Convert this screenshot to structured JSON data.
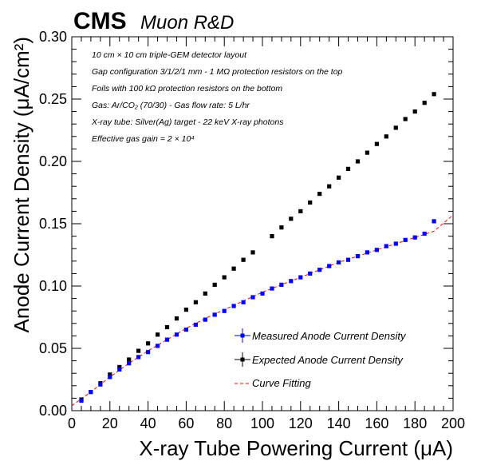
{
  "header": {
    "experiment": "CMS",
    "subtitle": "Muon R&D"
  },
  "annotations": [
    "10 cm × 10 cm triple-GEM detector layout",
    "Gap configuration 3/1/2/1 mm - 1 MΩ protection resistors on the top",
    "Foils with 100 kΩ protection resistors on the bottom",
    "Gas: Ar/CO₂ (70/30) - Gas flow rate: 5 L/hr",
    "X-ray tube: Silver(Ag) target - 22 keV X-ray photons",
    "Effective gas gain = 2 × 10⁴"
  ],
  "chart_data": {
    "type": "scatter",
    "xlabel": "X-ray Tube Powering Current (μA)",
    "ylabel": "Anode Current Density (μA/cm²)",
    "xlim": [
      0,
      200
    ],
    "ylim": [
      0,
      0.3
    ],
    "x_ticks": [
      "0",
      "20",
      "40",
      "60",
      "80",
      "100",
      "120",
      "140",
      "160",
      "180",
      "200"
    ],
    "y_ticks": [
      "0.00",
      "0.05",
      "0.10",
      "0.15",
      "0.20",
      "0.25",
      "0.30"
    ],
    "grid": false,
    "legend_position": "bottom-right",
    "series": [
      {
        "name": "Measured Anode Current Density",
        "color": "#0000ff",
        "marker": "square",
        "x": [
          5,
          10,
          15,
          20,
          25,
          30,
          35,
          40,
          45,
          50,
          55,
          60,
          65,
          70,
          75,
          80,
          85,
          90,
          95,
          100,
          105,
          110,
          115,
          120,
          125,
          130,
          135,
          140,
          145,
          150,
          155,
          160,
          165,
          170,
          175,
          180,
          185,
          190
        ],
        "y": [
          0.008,
          0.015,
          0.021,
          0.027,
          0.033,
          0.038,
          0.043,
          0.047,
          0.052,
          0.057,
          0.061,
          0.065,
          0.069,
          0.073,
          0.077,
          0.08,
          0.084,
          0.087,
          0.091,
          0.094,
          0.098,
          0.101,
          0.104,
          0.107,
          0.11,
          0.113,
          0.116,
          0.119,
          0.121,
          0.124,
          0.127,
          0.129,
          0.132,
          0.134,
          0.137,
          0.139,
          0.142,
          0.152
        ]
      },
      {
        "name": "Expected Anode Current Density",
        "color": "#000000",
        "marker": "square",
        "x": [
          5,
          10,
          15,
          20,
          25,
          30,
          35,
          40,
          45,
          50,
          55,
          60,
          65,
          70,
          75,
          80,
          85,
          90,
          95,
          105,
          110,
          115,
          120,
          125,
          130,
          135,
          140,
          145,
          150,
          155,
          160,
          165,
          170,
          175,
          180,
          185,
          190
        ],
        "y": [
          0.009,
          0.015,
          0.022,
          0.029,
          0.035,
          0.041,
          0.048,
          0.054,
          0.061,
          0.067,
          0.074,
          0.081,
          0.087,
          0.094,
          0.101,
          0.107,
          0.114,
          0.121,
          0.127,
          0.14,
          0.147,
          0.154,
          0.16,
          0.167,
          0.174,
          0.18,
          0.187,
          0.194,
          0.2,
          0.207,
          0.214,
          0.22,
          0.227,
          0.234,
          0.24,
          0.247,
          0.254
        ]
      },
      {
        "name": "Curve Fitting",
        "color": "#ff0000",
        "style": "dashed",
        "x": [
          0,
          10,
          20,
          30,
          40,
          50,
          60,
          70,
          80,
          90,
          100,
          110,
          120,
          130,
          140,
          150,
          160,
          170,
          180,
          190,
          200
        ],
        "y": [
          0.004,
          0.015,
          0.027,
          0.038,
          0.048,
          0.057,
          0.066,
          0.074,
          0.081,
          0.088,
          0.095,
          0.101,
          0.107,
          0.113,
          0.119,
          0.124,
          0.129,
          0.134,
          0.139,
          0.144,
          0.157
        ]
      }
    ]
  }
}
